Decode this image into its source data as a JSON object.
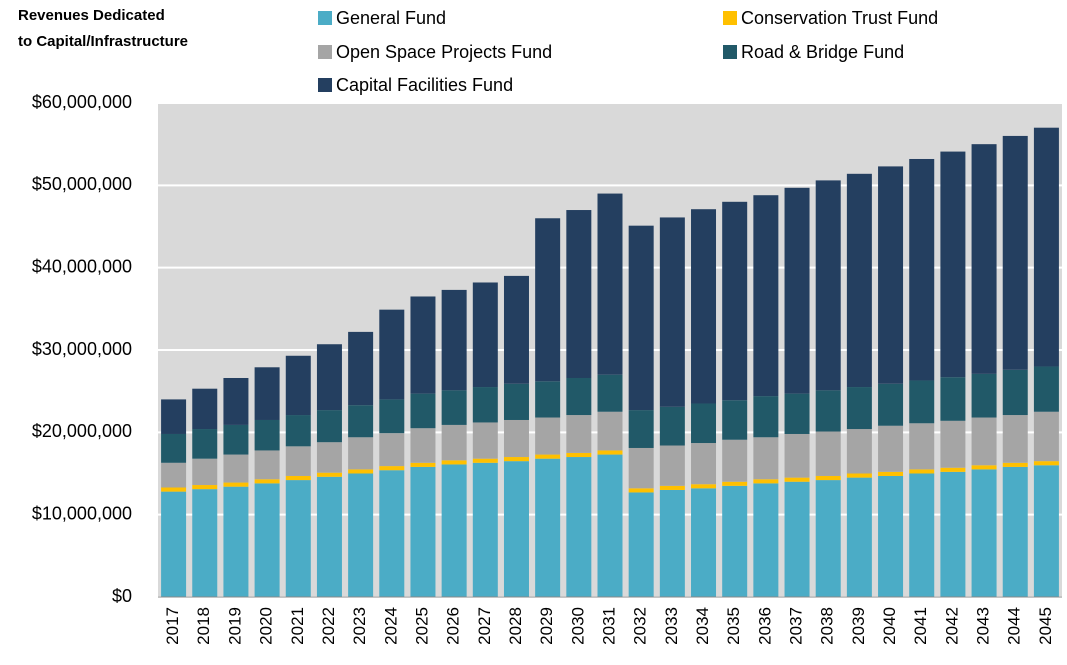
{
  "chart_data": {
    "type": "stacked_bar",
    "title": [
      "Revenues Dedicated",
      "to Capital/Infrastructure"
    ],
    "categories": [
      "2017",
      "2018",
      "2019",
      "2020",
      "2021",
      "2022",
      "2023",
      "2024",
      "2025",
      "2026",
      "2027",
      "2028",
      "2029",
      "2030",
      "2031",
      "2032",
      "2033",
      "2034",
      "2035",
      "2036",
      "2037",
      "2038",
      "2039",
      "2040",
      "2041",
      "2042",
      "2043",
      "2044",
      "2045"
    ],
    "series": [
      {
        "name": "General Fund",
        "color": "#4bacc6",
        "values": [
          12800000,
          13100000,
          13400000,
          13800000,
          14200000,
          14600000,
          15000000,
          15400000,
          15800000,
          16100000,
          16300000,
          16500000,
          16800000,
          17000000,
          17300000,
          12700000,
          13000000,
          13200000,
          13500000,
          13800000,
          14000000,
          14200000,
          14500000,
          14700000,
          15000000,
          15200000,
          15500000,
          15800000,
          16000000
        ]
      },
      {
        "name": "Conservation Trust Fund",
        "color": "#ffc000",
        "values": [
          500000,
          500000,
          500000,
          500000,
          500000,
          500000,
          500000,
          500000,
          500000,
          500000,
          500000,
          500000,
          500000,
          500000,
          500000,
          500000,
          500000,
          500000,
          500000,
          500000,
          500000,
          500000,
          500000,
          500000,
          500000,
          500000,
          500000,
          500000,
          500000
        ]
      },
      {
        "name": "Open Space Projects Fund",
        "color": "#a5a5a5",
        "values": [
          3000000,
          3200000,
          3400000,
          3500000,
          3600000,
          3700000,
          3900000,
          4000000,
          4200000,
          4300000,
          4400000,
          4500000,
          4500000,
          4600000,
          4700000,
          4900000,
          4900000,
          5000000,
          5100000,
          5100000,
          5300000,
          5400000,
          5400000,
          5600000,
          5600000,
          5700000,
          5800000,
          5800000,
          6000000
        ]
      },
      {
        "name": "Road & Bridge Fund",
        "color": "#215968",
        "values": [
          3500000,
          3600000,
          3600000,
          3700000,
          3800000,
          3900000,
          3900000,
          4100000,
          4200000,
          4200000,
          4300000,
          4400000,
          4400000,
          4500000,
          4500000,
          4600000,
          4700000,
          4800000,
          4800000,
          5000000,
          4900000,
          5000000,
          5100000,
          5100000,
          5200000,
          5300000,
          5300000,
          5500000,
          5500000
        ]
      },
      {
        "name": "Capital Facilities Fund",
        "color": "#243f60",
        "values": [
          4200000,
          4900000,
          5700000,
          6400000,
          7200000,
          8000000,
          8900000,
          10900000,
          11800000,
          12200000,
          12700000,
          13100000,
          19800000,
          20400000,
          22000000,
          22400000,
          23000000,
          23600000,
          24100000,
          24400000,
          25000000,
          25500000,
          25900000,
          26400000,
          26900000,
          27400000,
          27900000,
          28400000,
          29000000
        ]
      }
    ],
    "ylim": [
      0,
      60000000
    ],
    "yticks": [
      {
        "value": 0,
        "label": "$0"
      },
      {
        "value": 10000000,
        "label": "$10,000,000"
      },
      {
        "value": 20000000,
        "label": "$20,000,000"
      },
      {
        "value": 30000000,
        "label": "$30,000,000"
      },
      {
        "value": 40000000,
        "label": "$40,000,000"
      },
      {
        "value": 50000000,
        "label": "$50,000,000"
      },
      {
        "value": 60000000,
        "label": "$60,000,000"
      }
    ],
    "grid": true,
    "legend": "top"
  }
}
